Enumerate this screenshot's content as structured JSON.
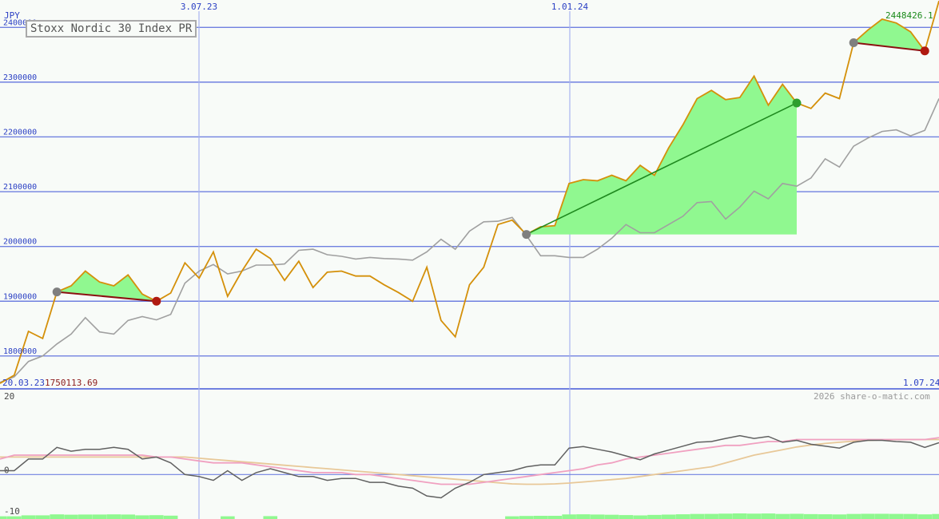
{
  "chart_data": {
    "type": "line",
    "title": "Stoxx Nordic 30 Index PR",
    "currency_label": "JPY",
    "last_value_label": "2448426.1",
    "start_date_label": "20.03.23",
    "start_value_label": "1750113.69",
    "end_date_label": "1.07.24",
    "watermark": "2026 share-o-matic.com",
    "x_tick_labels": [
      "3.07.23",
      "1.01.24"
    ],
    "y_tick_labels": [
      "1800000",
      "1900000",
      "2000000",
      "2100000",
      "2200000",
      "2300000",
      "2400000"
    ],
    "ylim": [
      1740000,
      2450000
    ],
    "colors": {
      "price": "#d4900a",
      "comparison": "#a0a0a0",
      "grid": "#7080e0",
      "gain_fill": "#90f890",
      "loss_fill": "#f8b0b8"
    },
    "series": [
      {
        "name": "Stoxx Nordic 30 Index PR",
        "role": "price",
        "values": [
          1750113.69,
          1765000,
          1845000,
          1832000,
          1917000,
          1928000,
          1955000,
          1935000,
          1928000,
          1948000,
          1913000,
          1900000,
          1915000,
          1970000,
          1942000,
          1990000,
          1909000,
          1955000,
          1995000,
          1978000,
          1938000,
          1973000,
          1925000,
          1953000,
          1955000,
          1946000,
          1946000,
          1930000,
          1916000,
          1900000,
          1962000,
          1865000,
          1835000,
          1930000,
          1962000,
          2040000,
          2048000,
          2022000,
          2036000,
          2038000,
          2115000,
          2122000,
          2120000,
          2130000,
          2120000,
          2148000,
          2130000,
          2180000,
          2222000,
          2270000,
          2285000,
          2268000,
          2272000,
          2311000,
          2258000,
          2296000,
          2262000,
          2252000,
          2280000,
          2270000,
          2372000,
          2395000,
          2415000,
          2408000,
          2392000,
          2357000,
          2448426.1
        ]
      },
      {
        "name": "comparison",
        "role": "comparison",
        "values": [
          1752000,
          1762000,
          1790000,
          1800000,
          1822000,
          1840000,
          1870000,
          1844000,
          1840000,
          1865000,
          1872000,
          1866000,
          1876000,
          1933000,
          1955000,
          1967000,
          1950000,
          1955000,
          1966000,
          1966000,
          1968000,
          1993000,
          1995000,
          1985000,
          1982000,
          1977000,
          1980000,
          1978000,
          1977000,
          1975000,
          1990000,
          2013000,
          1995000,
          2028000,
          2045000,
          2046000,
          2053000,
          2020000,
          1983000,
          1983000,
          1980000,
          1980000,
          1995000,
          2015000,
          2040000,
          2025000,
          2025000,
          2040000,
          2055000,
          2080000,
          2082000,
          2050000,
          2072000,
          2101000,
          2087000,
          2115000,
          2110000,
          2125000,
          2160000,
          2145000,
          2183000,
          2198000,
          2210000,
          2213000,
          2202000,
          2212000,
          2270000
        ]
      }
    ],
    "swings": [
      {
        "from": 4,
        "to": 11,
        "direction": "down"
      },
      {
        "from": 37,
        "to": 56,
        "direction": "up"
      },
      {
        "from": 60,
        "to": 65,
        "direction": "down"
      }
    ],
    "oscillator": {
      "ylim": [
        -10,
        20
      ],
      "y_tick_labels": [
        "20",
        "0",
        "-10"
      ],
      "colors": {
        "main": "#606060",
        "fast": "#f0a0c0",
        "slow": "#e8c898",
        "bars": "#90f890"
      },
      "main": [
        1,
        1,
        4,
        4,
        7,
        6,
        6.5,
        6.5,
        7,
        6.5,
        4,
        4.5,
        3,
        0,
        -0.5,
        -1.5,
        1,
        -1.5,
        0.5,
        1.5,
        0.5,
        -0.5,
        -0.5,
        -1.5,
        -1,
        -1,
        -2,
        -2,
        -3,
        -3.5,
        -5.5,
        -6,
        -3.5,
        -2,
        0,
        0.5,
        1,
        2,
        2.5,
        2.5,
        6.8,
        7.2,
        6.5,
        5.8,
        4.8,
        3.8,
        5.3,
        6.3,
        7.3,
        8.3,
        8.5,
        9.3,
        10,
        9.3,
        9.8,
        8.3,
        8.8,
        7.8,
        7.3,
        6.8,
        8.3,
        8.8,
        8.8,
        8.5,
        8.3,
        7,
        8.2
      ],
      "fast": [
        4,
        5,
        5,
        5,
        5,
        5,
        5,
        5,
        5,
        5,
        5,
        4.5,
        4.5,
        4,
        3.5,
        3,
        3,
        3,
        2.5,
        2,
        1.5,
        1,
        0.5,
        0.5,
        0.5,
        0,
        0,
        -0.5,
        -1,
        -1.5,
        -2,
        -2.5,
        -2.5,
        -2.5,
        -2,
        -1.5,
        -1,
        -0.5,
        0,
        0.5,
        1,
        1.5,
        2.5,
        3,
        4,
        4.5,
        5,
        5.5,
        6,
        6.5,
        7,
        7.5,
        7.5,
        8,
        8.5,
        8.5,
        9,
        9,
        9,
        9,
        9,
        9,
        9,
        9,
        9,
        9,
        9.5
      ],
      "slow": [
        4.5,
        4.5,
        4.5,
        4.5,
        4.5,
        4.5,
        4.5,
        4.5,
        4.5,
        4.5,
        4.5,
        4.5,
        4.5,
        4.5,
        4.2,
        3.9,
        3.6,
        3.3,
        3.0,
        2.7,
        2.4,
        2.1,
        1.8,
        1.5,
        1.2,
        0.9,
        0.6,
        0.3,
        0,
        -0.3,
        -0.6,
        -0.9,
        -1.2,
        -1.5,
        -1.8,
        -2.1,
        -2.4,
        -2.5,
        -2.5,
        -2.4,
        -2.2,
        -1.9,
        -1.6,
        -1.3,
        -1.0,
        -0.5,
        0,
        0.5,
        1.0,
        1.5,
        2.0,
        3.0,
        4.0,
        5.0,
        5.7,
        6.4,
        7.1,
        7.6,
        8.0,
        8.3,
        8.6,
        8.8,
        8.9,
        9.0,
        9.0,
        9.0,
        9.0
      ]
    }
  }
}
